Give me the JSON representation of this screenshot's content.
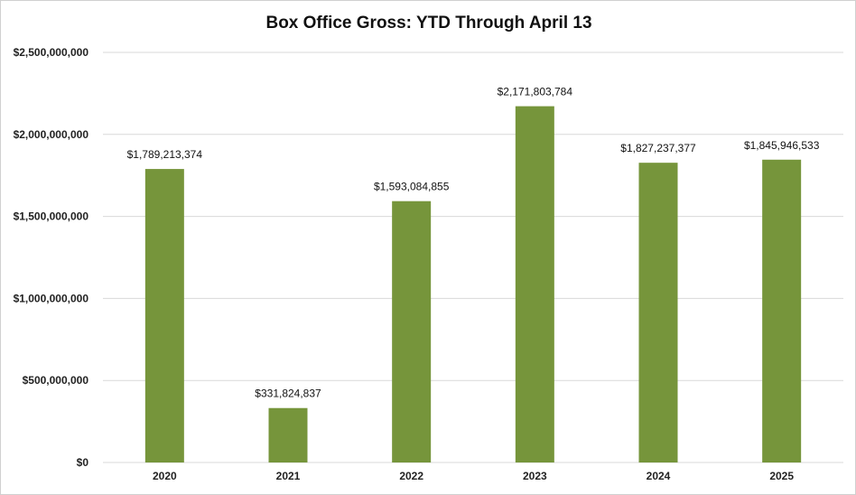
{
  "chart_data": {
    "type": "bar",
    "title": "Box Office Gross: YTD Through April 13",
    "xlabel": "",
    "ylabel": "",
    "categories": [
      "2020",
      "2021",
      "2022",
      "2023",
      "2024",
      "2025"
    ],
    "values": [
      1789213374,
      331824837,
      1593084855,
      2171803784,
      1827237377,
      1845946533
    ],
    "data_labels": [
      "$1,789,213,374",
      "$331,824,837",
      "$1,593,084,855",
      "$2,171,803,784",
      "$1,827,237,377",
      "$1,845,946,533"
    ],
    "ylim": [
      0,
      2500000000
    ],
    "yticks": [
      0,
      500000000,
      1000000000,
      1500000000,
      2000000000,
      2500000000
    ],
    "ytick_labels": [
      "$0",
      "$500,000,000",
      "$1,000,000,000",
      "$1,500,000,000",
      "$2,000,000,000",
      "$2,500,000,000"
    ],
    "grid": true,
    "legend": "none",
    "bar_color": "#76953b",
    "grid_color": "#d9d9d9"
  }
}
